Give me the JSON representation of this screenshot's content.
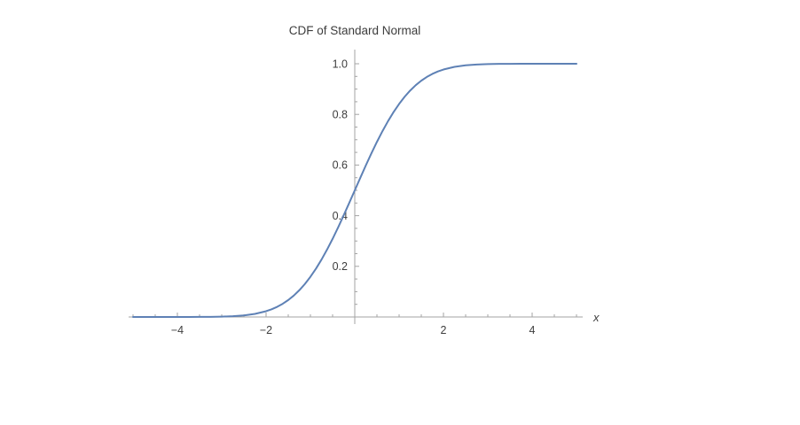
{
  "chart_data": {
    "type": "line",
    "title": "CDF of Standard Normal",
    "xlabel": "x",
    "ylabel": "",
    "xlim": [
      -5,
      5
    ],
    "ylim": [
      0,
      1
    ],
    "grid": false,
    "legend": "none",
    "line_color": "#5e81b5",
    "axis_color": "#a3a3a3",
    "text_color": "#3d3d3d",
    "x_ticks": [
      -4,
      -2,
      2,
      4
    ],
    "x_tick_labels": [
      "−4",
      "−2",
      "2",
      "4"
    ],
    "y_ticks": [
      0.2,
      0.4,
      0.6,
      0.8,
      1.0
    ],
    "y_tick_labels": [
      "0.2",
      "0.4",
      "0.6",
      "0.8",
      "1.0"
    ],
    "x": [
      -5,
      -4.75,
      -4.5,
      -4.25,
      -4,
      -3.75,
      -3.5,
      -3.25,
      -3,
      -2.75,
      -2.5,
      -2.25,
      -2,
      -1.875,
      -1.75,
      -1.625,
      -1.5,
      -1.375,
      -1.25,
      -1.125,
      -1,
      -0.875,
      -0.75,
      -0.625,
      -0.5,
      -0.375,
      -0.25,
      -0.125,
      0,
      0.125,
      0.25,
      0.375,
      0.5,
      0.625,
      0.75,
      0.875,
      1,
      1.125,
      1.25,
      1.375,
      1.5,
      1.625,
      1.75,
      1.875,
      2,
      2.25,
      2.5,
      2.75,
      3,
      3.25,
      3.5,
      3.75,
      4,
      4.25,
      4.5,
      4.75,
      5
    ],
    "y": [
      0,
      1e-06,
      3.4e-06,
      1.07e-05,
      3.17e-05,
      8.84e-05,
      0.000233,
      0.000577,
      0.00135,
      0.00298,
      0.00621,
      0.01222,
      0.02275,
      0.0304,
      0.04006,
      0.0521,
      0.06681,
      0.08455,
      0.10565,
      0.1303,
      0.15866,
      0.1908,
      0.22663,
      0.266,
      0.30854,
      0.3538,
      0.40129,
      0.4503,
      0.5,
      0.5497,
      0.59871,
      0.6462,
      0.69146,
      0.734,
      0.77337,
      0.8092,
      0.84134,
      0.8697,
      0.89435,
      0.9154,
      0.93319,
      0.9479,
      0.95994,
      0.9696,
      0.97725,
      0.98778,
      0.99379,
      0.99702,
      0.99865,
      0.99942,
      0.99977,
      0.99991,
      0.99997,
      0.99999,
      1,
      1,
      1
    ]
  }
}
